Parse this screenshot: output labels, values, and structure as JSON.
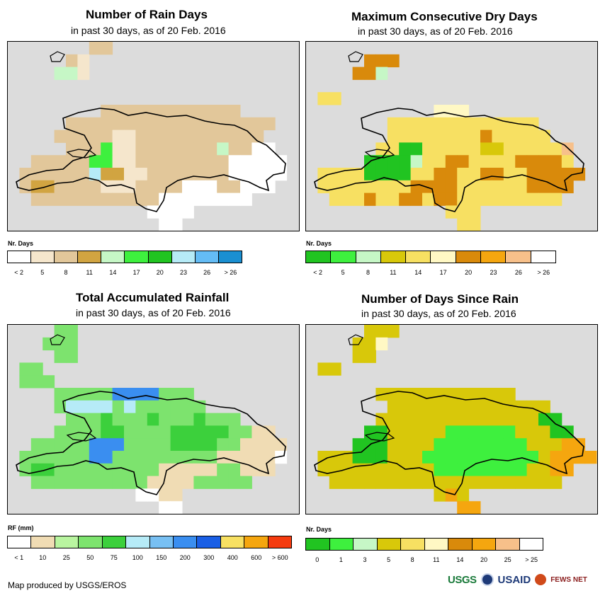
{
  "panels": [
    {
      "id": "rain-days",
      "title": "Number of Rain Days",
      "subtitle": "in past 30 days, as of 20 Feb. 2016",
      "legend_title": "Nr. Days",
      "legend_colors": [
        "#ffffff",
        "#f5e6cc",
        "#e2c79a",
        "#d1a441",
        "#c6f7c6",
        "#3ef03e",
        "#21c421",
        "#b6ebf7",
        "#64bcf5",
        "#1a8fd1"
      ],
      "legend_ticks": [
        "< 2",
        "5",
        "8",
        "11",
        "14",
        "17",
        "20",
        "23",
        "26",
        "> 26"
      ],
      "grid": [
        "gggggggDDggggggggggggggggg",
        "gggggDBggggggggggggggggggg",
        "ggggFSBggggggggggggggggggg",
        "gggggggggggggggggggggggggg",
        "ggggggggggggggggggggggggg",
        "ggggggggDDDDDDDDDDDDggggg",
        "gggggDDDDDDDDDDDDDDDDDDgg",
        "ggggDDDDDBBDDDDDDDDDDDgg",
        "gggggDDDGBBDDDDDDDSDDWWg",
        "ggDDDDDGGBBDDDDDDDDWWWWWg",
        "gDDDDDDLCCBBDDDDDDDWWWWWg",
        "gDCCDDDDBBBDDDDWWWDDWWWg",
        "ggDDDDDDDDDDDWWWWWWWWgg",
        "ggggggggggggWWWWgggggg",
        "gggggggggggggWWggggggg"
      ]
    },
    {
      "id": "dry-days",
      "title": "Maximum Consecutive Dry Days",
      "subtitle": "in past 30 days, as of 20 Feb. 2016",
      "legend_title": "Nr. Days",
      "legend_colors": [
        "#21c421",
        "#3ef03e",
        "#c6f7c6",
        "#d8c80a",
        "#f7e062",
        "#fff8c4",
        "#d98a0b",
        "#f5a60f",
        "#f7c08a",
        "#ffffff"
      ],
      "legend_ticks": [
        "< 2",
        "5",
        "8",
        "11",
        "14",
        "17",
        "20",
        "23",
        "26",
        "> 26"
      ],
      "grid": [
        "ggggggggggggggggggggggggg",
        "gggggOOOgggggggggggggggggg",
        "ggggOOLggggggggggggggggggg",
        "gggggggggggggggggggggggggg",
        "gYYggggggggggggggggggggggg",
        "gggggggggggCCCgggggggggggg",
        "gggggggYYYYYYYYYYYYYgggggg",
        "gggggggYYYYYYYYOYYYYYggggg",
        "ggggggYYGGYYYYYKKYYYYYPgg",
        "gggggGGGGLYYOOYYYYOOOOYggg",
        "gYYYYGGGGYYOOYYOOYYOOOOOg",
        "gYYYYYYYYOOOOYYYYYYOOOOgg",
        "ggYYYOYYOOYOOYYYYYYYYYgg",
        "ggggggggggggYYYggggggggg",
        "gggggggggggggYYggggggggg"
      ]
    },
    {
      "id": "total-rainfall",
      "title": "Total Accumulated Rainfall",
      "subtitle": "in past 30 days, as of 20 Feb. 2016",
      "legend_title": "RF (mm)",
      "legend_colors": [
        "#ffffff",
        "#f0dcb4",
        "#b9f5a0",
        "#7de36e",
        "#3cd03c",
        "#b6ebf7",
        "#78c0f3",
        "#3a8ef0",
        "#1a5fe6",
        "#f7e062",
        "#f5a60f",
        "#f53b0f"
      ],
      "legend_ticks": [
        "< 1",
        "10",
        "25",
        "50",
        "75",
        "100",
        "150",
        "200",
        "300",
        "400",
        "600",
        "> 600"
      ],
      "grid": [
        "ggggLLggggggggggggggggggg",
        "gggLLLgggggggggggggggggg",
        "ggggLLgggggggggggggggggg",
        "gLLgggggggggggggggggggggg",
        "gLLLgggggggggggggggggggggg",
        "ggggLLLLLBBBBLLLgggggggg",
        "ggggLCCCCLCLLLLLLggggggg",
        "gggggLLLMLLLMLLLMLLLgggg",
        "ggggLLLLMMLLLLMMMMMLLDDgg",
        "ggLLLLLBBBLLLLMMMMLLDDDDg",
        "gLLLLLLBBLLLLLLLLLDDDDDWg",
        "gLMMLLLLLLLLLDDDDDLLDDDg",
        "ggLLLLLLLLLLDDDDLLLLLgg",
        "gggggggggggWWDDggggggg",
        "gggggggggggggWWggggggg"
      ]
    },
    {
      "id": "days-since-rain",
      "title": "Number of Days Since Rain",
      "subtitle": "in past 30 days, as of 20 Feb. 2016",
      "legend_title": "Nr. Days",
      "legend_colors": [
        "#21c421",
        "#3ef03e",
        "#c6f7c6",
        "#d8c80a",
        "#f7e062",
        "#fff8c4",
        "#d98a0b",
        "#f5a60f",
        "#f7c08a",
        "#ffffff"
      ],
      "legend_ticks": [
        "0",
        "1",
        "3",
        "5",
        "8",
        "11",
        "14",
        "20",
        "25",
        "> 25"
      ],
      "grid": [
        "gggggYYYgggggggggggggggg",
        "ggggYYCggggggggggggggggg",
        "ggggYYggggggggggggggggggg",
        "gYYgggggggggggggggggggggg",
        "gggggggggggggggggggggggggg",
        "ggggggYYYYYYYYYYYYgggggg",
        "gggggggYYYYYYYYYYYYYYggggg",
        "ggggggYYYYYYYYYYYYYYGGgggg",
        "gggggGGYYYYYLLLLLLYYYGGggg",
        "ggggGGGYYYYLLLLLLLLYYYOOgg",
        "gYYYGGGYYYLLLLLLLLLLYOOOOg",
        "gYYYYYYYYYYLLLLLLLLYYOOgg",
        "ggYYYYYYYYYYYYYYYYYYYYgg",
        "gggggggggggYOYggggggggg",
        "gggggggggggggOOggggggggg"
      ]
    }
  ],
  "footer": {
    "credit": "Map produced by USGS/EROS",
    "logo_usgs": "USGS",
    "logo_usaid": "USAID",
    "logo_fews": "FEWS NET"
  }
}
